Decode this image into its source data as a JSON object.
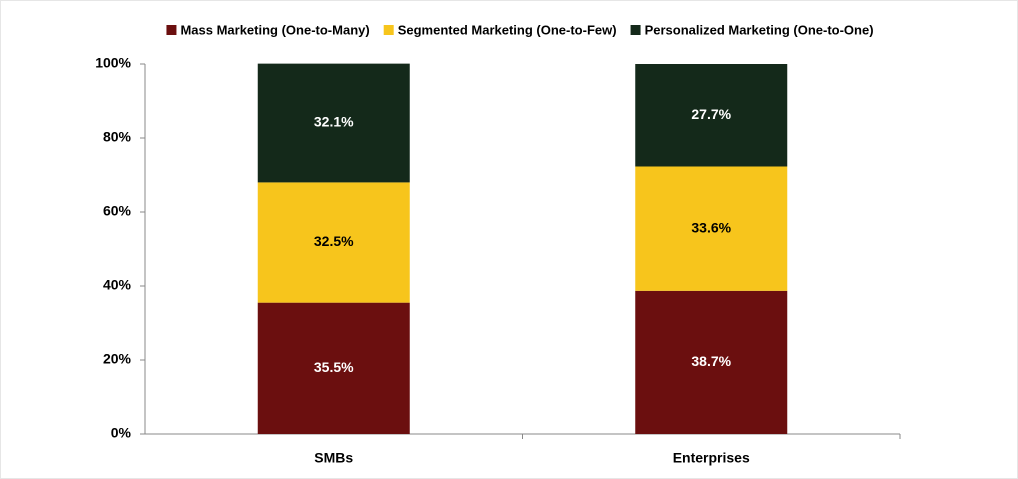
{
  "chart_data": {
    "type": "stacked_bar",
    "categories": [
      "SMBs",
      "Enterprises"
    ],
    "series": [
      {
        "name": "Mass Marketing (One-to-Many)",
        "color": "#6b0f0f",
        "values": [
          35.5,
          38.7
        ],
        "value_labels": [
          "35.5%",
          "38.7%"
        ]
      },
      {
        "name": "Segmented Marketing (One-to-Few)",
        "color": "#f7c51c",
        "values": [
          32.5,
          33.6
        ],
        "value_labels": [
          "32.5%",
          "33.6%"
        ]
      },
      {
        "name": "Personalized Marketing (One-to-One)",
        "color": "#14291a",
        "values": [
          32.1,
          27.7
        ],
        "value_labels": [
          "32.1%",
          "27.7%"
        ]
      }
    ],
    "ylim": [
      0,
      100
    ],
    "yticks": [
      {
        "value": 0,
        "label": "0%"
      },
      {
        "value": 20,
        "label": "20%"
      },
      {
        "value": 40,
        "label": "40%"
      },
      {
        "value": 60,
        "label": "60%"
      },
      {
        "value": 80,
        "label": "80%"
      },
      {
        "value": 100,
        "label": "100%"
      }
    ],
    "legend": "top"
  }
}
